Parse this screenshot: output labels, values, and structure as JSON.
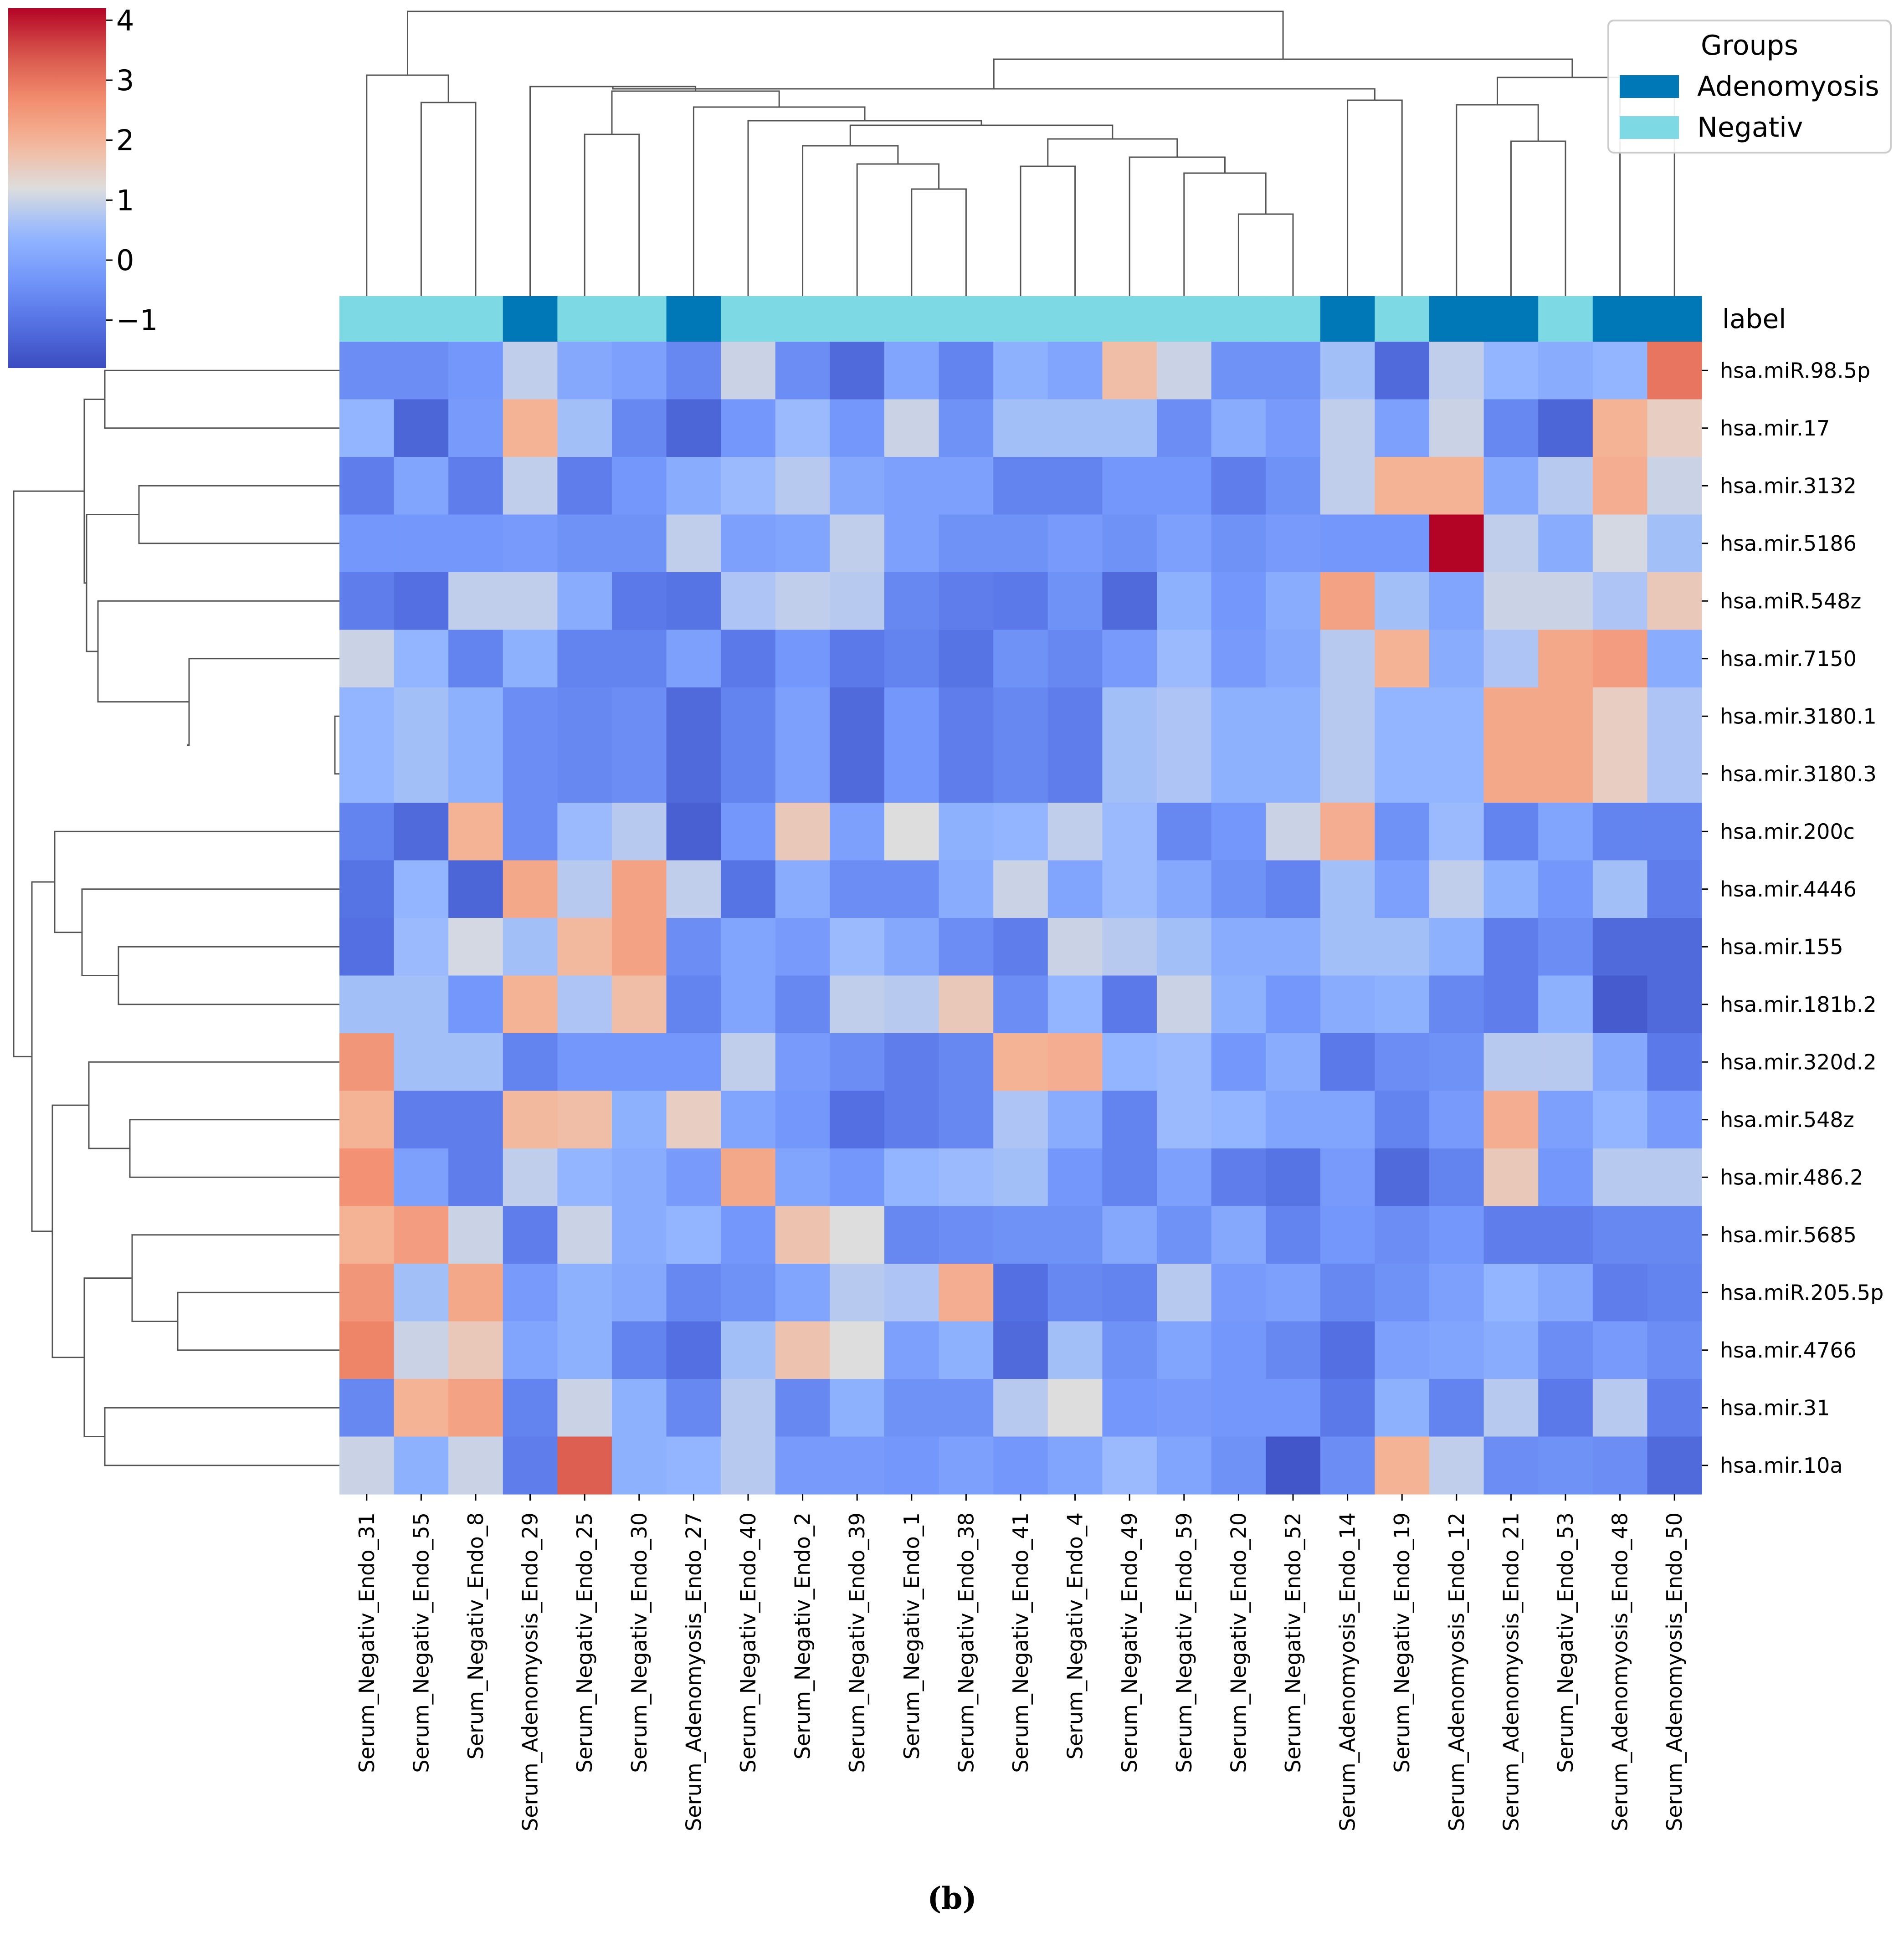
{
  "caption": "(b)",
  "chart_data": {
    "type": "heatmap",
    "title": "",
    "subtitle": "clustered heatmap (hierarchical clustering of rows and columns)",
    "colormap": "coolwarm",
    "colorbar": {
      "min": -1.8,
      "max": 4.2,
      "ticks": [
        -1,
        0,
        1,
        2,
        3,
        4
      ],
      "tick_labels": [
        "−1",
        "0",
        "1",
        "2",
        "3",
        "4"
      ],
      "placement": "top-left"
    },
    "columns": [
      "Serum_Negativ_Endo_31",
      "Serum_Negativ_Endo_55",
      "Serum_Negativ_Endo_8",
      "Serum_Adenomyosis_Endo_29",
      "Serum_Negativ_Endo_25",
      "Serum_Negativ_Endo_30",
      "Serum_Adenomyosis_Endo_27",
      "Serum_Negativ_Endo_40",
      "Serum_Negativ_Endo_2",
      "Serum_Negativ_Endo_39",
      "Serum_Negativ_Endo_1",
      "Serum_Negativ_Endo_38",
      "Serum_Negativ_Endo_41",
      "Serum_Negativ_Endo_4",
      "Serum_Negativ_Endo_49",
      "Serum_Negativ_Endo_59",
      "Serum_Negativ_Endo_20",
      "Serum_Negativ_Endo_52",
      "Serum_Adenomyosis_Endo_14",
      "Serum_Negativ_Endo_19",
      "Serum_Adenomyosis_Endo_12",
      "Serum_Adenomyosis_Endo_21",
      "Serum_Negativ_Endo_53",
      "Serum_Adenomyosis_Endo_48",
      "Serum_Adenomyosis_Endo_50"
    ],
    "column_groups": [
      "Negativ",
      "Negativ",
      "Negativ",
      "Adenomyosis",
      "Negativ",
      "Negativ",
      "Adenomyosis",
      "Negativ",
      "Negativ",
      "Negativ",
      "Negativ",
      "Negativ",
      "Negativ",
      "Negativ",
      "Negativ",
      "Negativ",
      "Negativ",
      "Negativ",
      "Adenomyosis",
      "Negativ",
      "Adenomyosis",
      "Adenomyosis",
      "Negativ",
      "Adenomyosis",
      "Adenomyosis"
    ],
    "annotation_row_label": "label",
    "rows": [
      "hsa.miR.98.5p",
      "hsa.mir.17",
      "hsa.mir.3132",
      "hsa.mir.5186",
      "hsa.miR.548z",
      "hsa.mir.7150",
      "hsa.mir.3180.1",
      "hsa.mir.3180.3",
      "hsa.mir.200c",
      "hsa.mir.4446",
      "hsa.mir.155",
      "hsa.mir.181b.2",
      "hsa.mir.320d.2",
      "hsa.mir.548z",
      "hsa.mir.486.2",
      "hsa.mir.5685",
      "hsa.miR.205.5p",
      "hsa.mir.4766",
      "hsa.mir.31",
      "hsa.mir.10a"
    ],
    "values": [
      [
        -0.5,
        -0.5,
        -0.3,
        0.9,
        0.1,
        -0.1,
        -0.6,
        1.0,
        -0.5,
        -1.2,
        0.0,
        -0.7,
        0.3,
        0.0,
        1.8,
        1.0,
        -0.4,
        -0.4,
        0.6,
        -1.2,
        0.9,
        0.4,
        0.2,
        0.4,
        3.0
      ],
      [
        0.4,
        -1.3,
        -0.2,
        2.0,
        0.6,
        -0.6,
        -1.3,
        -0.3,
        0.5,
        -0.3,
        1.0,
        -0.4,
        0.6,
        0.6,
        0.6,
        -0.5,
        0.2,
        -0.2,
        0.9,
        -0.1,
        1.0,
        -0.6,
        -1.3,
        2.0,
        1.5
      ],
      [
        -0.8,
        0.0,
        -0.8,
        0.9,
        -0.8,
        -0.3,
        0.2,
        0.5,
        0.8,
        0.1,
        -0.1,
        -0.1,
        -0.7,
        -0.7,
        -0.3,
        -0.3,
        -0.8,
        -0.4,
        0.9,
        2.0,
        2.0,
        0.1,
        0.8,
        2.1,
        1.0
      ],
      [
        -0.3,
        -0.3,
        -0.3,
        -0.2,
        -0.4,
        -0.4,
        0.9,
        -0.1,
        0.0,
        0.9,
        -0.1,
        -0.4,
        -0.4,
        -0.2,
        -0.4,
        -0.1,
        -0.4,
        -0.2,
        -0.3,
        -0.3,
        4.2,
        0.9,
        0.2,
        1.1,
        0.6
      ],
      [
        -0.8,
        -1.1,
        0.9,
        0.9,
        0.2,
        -0.9,
        -1.0,
        0.7,
        0.9,
        0.8,
        -0.6,
        -0.8,
        -0.9,
        -0.4,
        -1.2,
        0.3,
        -0.3,
        0.2,
        2.3,
        0.6,
        0.0,
        1.0,
        1.0,
        0.7,
        1.6
      ],
      [
        1.0,
        0.4,
        -0.7,
        0.3,
        -0.7,
        -0.7,
        -0.1,
        -0.9,
        -0.3,
        -0.9,
        -0.7,
        -1.0,
        -0.4,
        -0.6,
        -0.2,
        0.5,
        -0.2,
        0.1,
        0.8,
        2.0,
        0.2,
        0.7,
        2.2,
        2.4,
        0.2
      ],
      [
        0.4,
        0.6,
        0.3,
        -0.5,
        -0.6,
        -0.5,
        -1.2,
        -0.7,
        -0.1,
        -1.2,
        -0.3,
        -0.8,
        -0.6,
        -0.8,
        0.6,
        0.7,
        0.3,
        0.3,
        0.8,
        0.4,
        0.4,
        2.2,
        2.2,
        1.5,
        0.7
      ],
      [
        0.4,
        0.6,
        0.3,
        -0.5,
        -0.6,
        -0.5,
        -1.2,
        -0.7,
        -0.1,
        -1.2,
        -0.3,
        -0.8,
        -0.6,
        -0.8,
        0.6,
        0.7,
        0.3,
        0.3,
        0.8,
        0.4,
        0.4,
        2.2,
        2.2,
        1.5,
        0.7
      ],
      [
        -0.7,
        -1.2,
        2.0,
        -0.5,
        0.5,
        0.8,
        -1.4,
        -0.3,
        1.6,
        -0.1,
        1.2,
        0.3,
        0.4,
        0.9,
        0.5,
        -0.6,
        -0.3,
        1.0,
        2.1,
        -0.4,
        0.5,
        -0.7,
        0.0,
        -0.7,
        -0.7
      ],
      [
        -1.0,
        0.4,
        -1.3,
        2.2,
        0.8,
        2.3,
        0.9,
        -1.0,
        0.2,
        -0.5,
        -0.5,
        0.2,
        1.0,
        0.0,
        0.5,
        0.1,
        -0.4,
        -0.7,
        0.6,
        -0.1,
        0.9,
        0.3,
        -0.3,
        0.6,
        -0.8
      ],
      [
        -1.1,
        0.5,
        1.1,
        0.6,
        1.9,
        2.3,
        -0.5,
        0.0,
        -0.2,
        0.5,
        0.1,
        -0.5,
        -0.8,
        1.0,
        0.8,
        0.6,
        0.2,
        0.2,
        0.6,
        0.6,
        0.3,
        -0.8,
        -0.5,
        -1.2,
        -1.2
      ],
      [
        0.6,
        0.6,
        -0.3,
        2.0,
        0.7,
        1.8,
        -0.7,
        0.0,
        -0.6,
        0.9,
        0.8,
        1.6,
        -0.5,
        0.4,
        -0.9,
        1.0,
        0.3,
        -0.3,
        0.2,
        0.3,
        -0.6,
        -0.8,
        0.3,
        -1.5,
        -1.2
      ],
      [
        2.5,
        0.6,
        0.6,
        -0.7,
        -0.3,
        -0.3,
        -0.3,
        0.9,
        -0.2,
        -0.5,
        -0.8,
        -0.6,
        2.0,
        2.1,
        0.4,
        0.5,
        -0.3,
        0.2,
        -0.9,
        -0.5,
        -0.4,
        0.8,
        0.8,
        0.1,
        -0.9
      ],
      [
        2.0,
        -0.8,
        -0.8,
        1.9,
        1.8,
        0.3,
        1.5,
        0.0,
        -0.3,
        -1.1,
        -0.8,
        -0.6,
        0.7,
        0.2,
        -0.7,
        0.5,
        0.4,
        0.0,
        0.0,
        -0.7,
        -0.2,
        2.1,
        -0.1,
        0.4,
        -0.2
      ],
      [
        2.6,
        -0.1,
        -0.8,
        0.9,
        0.4,
        0.2,
        -0.2,
        2.2,
        0.0,
        -0.3,
        0.4,
        0.5,
        0.6,
        -0.3,
        -0.7,
        -0.1,
        -0.8,
        -1.0,
        -0.2,
        -1.2,
        -0.7,
        1.6,
        -0.3,
        0.8,
        0.8
      ],
      [
        2.0,
        2.4,
        1.0,
        -0.8,
        1.0,
        0.2,
        0.4,
        -0.3,
        1.7,
        1.2,
        -0.6,
        -0.5,
        -0.4,
        -0.4,
        0.1,
        -0.4,
        0.1,
        -0.7,
        -0.3,
        -0.5,
        -0.3,
        -0.8,
        -0.8,
        -0.6,
        -0.6
      ],
      [
        2.5,
        0.6,
        2.2,
        -0.2,
        0.3,
        0.1,
        -0.6,
        -0.4,
        0.0,
        0.8,
        0.7,
        2.1,
        -1.1,
        -0.6,
        -0.7,
        0.8,
        -0.2,
        -0.1,
        -0.6,
        -0.4,
        -0.1,
        0.4,
        0.1,
        -0.8,
        -0.7
      ],
      [
        2.8,
        1.0,
        1.6,
        0.0,
        0.3,
        -0.7,
        -1.1,
        0.6,
        1.7,
        1.2,
        -0.1,
        0.3,
        -1.2,
        0.6,
        -0.4,
        0.0,
        -0.3,
        -0.6,
        -1.1,
        -0.1,
        0.0,
        0.2,
        -0.5,
        -0.2,
        -0.5
      ],
      [
        -0.6,
        2.0,
        2.3,
        -0.7,
        1.0,
        0.3,
        -0.6,
        0.8,
        -0.6,
        0.3,
        -0.4,
        -0.4,
        0.8,
        1.2,
        -0.3,
        -0.2,
        -0.3,
        -0.3,
        -0.9,
        0.3,
        -0.7,
        0.8,
        -0.9,
        0.8,
        -0.8
      ],
      [
        1.0,
        0.3,
        1.0,
        -0.8,
        3.3,
        0.3,
        0.4,
        0.8,
        -0.2,
        -0.2,
        -0.3,
        -0.1,
        -0.3,
        0.0,
        0.5,
        0.0,
        -0.4,
        -1.6,
        -0.5,
        2.0,
        0.9,
        -0.5,
        -0.4,
        -0.5,
        -1.2
      ]
    ],
    "legend": {
      "title": "Groups",
      "entries": [
        {
          "label": "Adenomyosis",
          "color": "#0077b6"
        },
        {
          "label": "Negativ",
          "color": "#7dd9e3"
        }
      ],
      "placement": "top-right"
    },
    "colors": {
      "adenomyosis": "#0077b6",
      "negativ": "#7dd9e3",
      "dendrogram": "#555555"
    }
  }
}
